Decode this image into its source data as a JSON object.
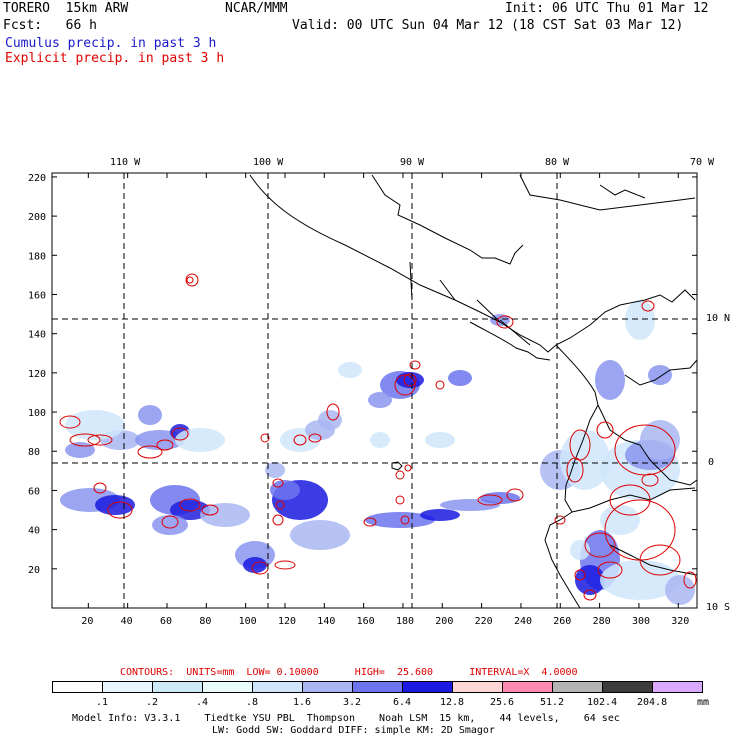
{
  "header": {
    "model": "TORERO  15km ARW",
    "org": "NCAR/MMM",
    "init": "Init: 06 UTC Thu 01 Mar 12",
    "fcst": "Fcst:   66 h",
    "valid": "Valid: 00 UTC Sun 04 Mar 12 (18 CST Sat 03 Mar 12)",
    "field1": "Cumulus precip. in past 3 h",
    "field2": "Explicit precip. in past 3 h"
  },
  "colors": {
    "field1": "#1a1acc",
    "field2": "#e00000",
    "contour": "#dd0000"
  },
  "lon_labels": [
    "110 W",
    "100 W",
    "90 W",
    "80 W",
    "70 W"
  ],
  "lat_labels": [
    "10 N",
    "0",
    "10 S"
  ],
  "y_ticks": [
    "220",
    "200",
    "180",
    "160",
    "140",
    "120",
    "100",
    "80",
    "60",
    "40",
    "20"
  ],
  "x_ticks": [
    "20",
    "40",
    "60",
    "80",
    "100",
    "120",
    "140",
    "160",
    "180",
    "200",
    "220",
    "240",
    "260",
    "280",
    "300",
    "320"
  ],
  "contour_info": "CONTOURS:  UNITS=mm  LOW= 0.10000      HIGH=  25.600      INTERVAL=X  4.0000",
  "colorbar": {
    "labels": [
      ".1",
      ".2",
      ".4",
      ".8",
      "1.6",
      "3.2",
      "6.4",
      "12.8",
      "25.6",
      "51.2",
      "102.4",
      "204.8"
    ],
    "unit": "mm",
    "colors": [
      "#ffffff",
      "#e8f6ff",
      "#cdeaf7",
      "#eafdfb",
      "#cfe6fa",
      "#a9b6f2",
      "#6c74ee",
      "#1a1ae0",
      "#ffd6d6",
      "#ff8ab4",
      "#b4b4b4",
      "#3c3c3c",
      "#d9a8ff"
    ]
  },
  "footer": {
    "line1": "Model Info: V3.3.1    Tiedtke YSU PBL  Thompson    Noah LSM  15 km,    44 levels,    64 sec",
    "line2": "LW: Godd SW: Goddard DIFF: simple KM: 2D Smagor"
  }
}
